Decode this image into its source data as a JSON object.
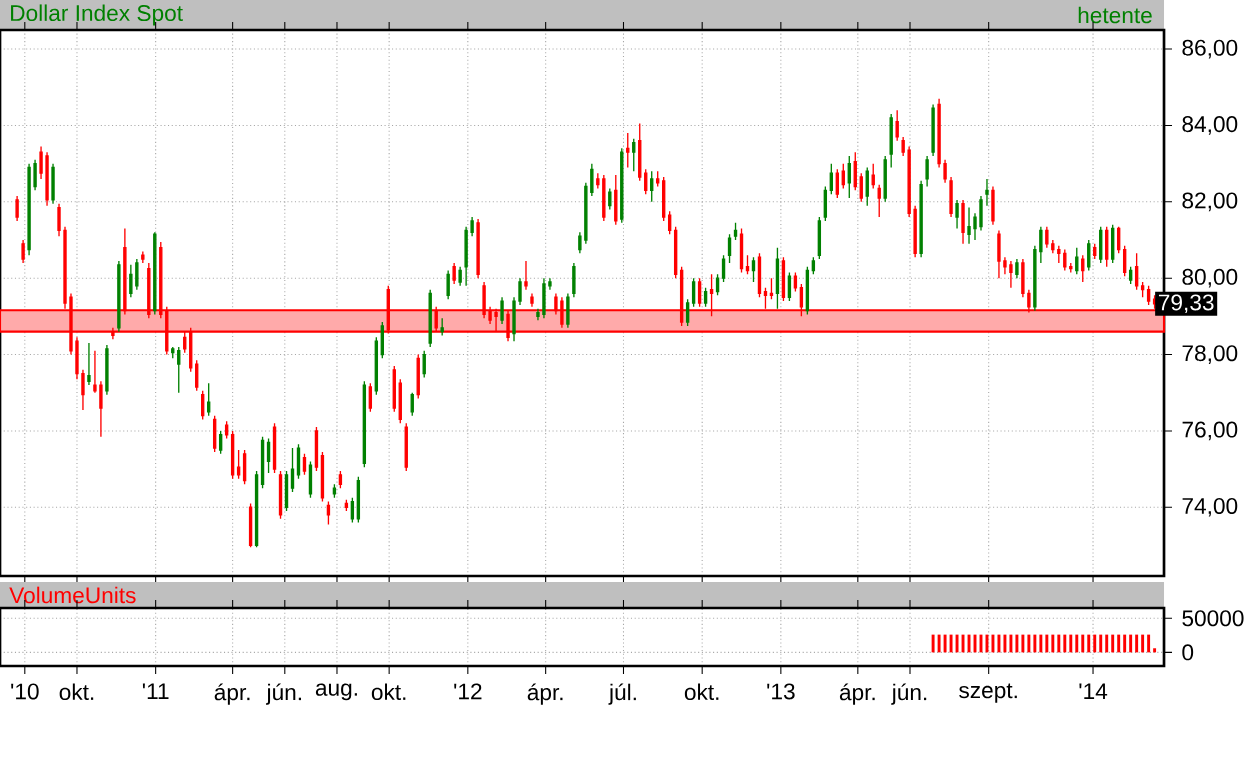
{
  "chart_data": [
    {
      "type": "candlestick",
      "title": "Dollar Index Spot",
      "subtitle": "hetente",
      "x": [
        "2010-07-23",
        "2010-07-30",
        "2010-08-06",
        "2010-08-13",
        "2010-08-20",
        "2010-08-27",
        "2010-09-03",
        "2010-09-10",
        "2010-09-17",
        "2010-09-24",
        "2010-10-01",
        "2010-10-08",
        "2010-10-15",
        "2010-10-22",
        "2010-10-29",
        "2010-11-05",
        "2010-11-12",
        "2010-11-19",
        "2010-11-26",
        "2010-12-03",
        "2010-12-10",
        "2010-12-17",
        "2010-12-24",
        "2010-12-31",
        "2011-01-07",
        "2011-01-14",
        "2011-01-21",
        "2011-01-28",
        "2011-02-04",
        "2011-02-11",
        "2011-02-18",
        "2011-02-25",
        "2011-03-04",
        "2011-03-11",
        "2011-03-18",
        "2011-03-25",
        "2011-04-01",
        "2011-04-08",
        "2011-04-15",
        "2011-04-22",
        "2011-04-29",
        "2011-05-06",
        "2011-05-13",
        "2011-05-20",
        "2011-05-27",
        "2011-06-03",
        "2011-06-10",
        "2011-06-17",
        "2011-06-24",
        "2011-07-01",
        "2011-07-08",
        "2011-07-15",
        "2011-07-22",
        "2011-07-29",
        "2011-08-05",
        "2011-08-12",
        "2011-08-19",
        "2011-08-26",
        "2011-09-02",
        "2011-09-09",
        "2011-09-16",
        "2011-09-23",
        "2011-09-30",
        "2011-10-07",
        "2011-10-14",
        "2011-10-21",
        "2011-10-28",
        "2011-11-04",
        "2011-11-11",
        "2011-11-18",
        "2011-11-25",
        "2011-12-02",
        "2011-12-09",
        "2011-12-16",
        "2011-12-23",
        "2011-12-30",
        "2012-01-06",
        "2012-01-13",
        "2012-01-20",
        "2012-01-27",
        "2012-02-03",
        "2012-02-10",
        "2012-02-17",
        "2012-02-24",
        "2012-03-02",
        "2012-03-09",
        "2012-03-16",
        "2012-03-23",
        "2012-03-30",
        "2012-04-06",
        "2012-04-13",
        "2012-04-20",
        "2012-04-27",
        "2012-05-04",
        "2012-05-11",
        "2012-05-18",
        "2012-05-25",
        "2012-06-01",
        "2012-06-08",
        "2012-06-15",
        "2012-06-22",
        "2012-06-29",
        "2012-07-06",
        "2012-07-13",
        "2012-07-20",
        "2012-07-27",
        "2012-08-03",
        "2012-08-10",
        "2012-08-17",
        "2012-08-24",
        "2012-08-31",
        "2012-09-07",
        "2012-09-14",
        "2012-09-21",
        "2012-09-28",
        "2012-10-05",
        "2012-10-12",
        "2012-10-19",
        "2012-10-26",
        "2012-11-02",
        "2012-11-09",
        "2012-11-16",
        "2012-11-23",
        "2012-11-30",
        "2012-12-07",
        "2012-12-14",
        "2012-12-21",
        "2012-12-28",
        "2013-01-04",
        "2013-01-11",
        "2013-01-18",
        "2013-01-25",
        "2013-02-01",
        "2013-02-08",
        "2013-02-15",
        "2013-02-22",
        "2013-03-01",
        "2013-03-08",
        "2013-03-15",
        "2013-03-22",
        "2013-03-29",
        "2013-04-05",
        "2013-04-12",
        "2013-04-19",
        "2013-04-26",
        "2013-05-03",
        "2013-05-10",
        "2013-05-17",
        "2013-05-24",
        "2013-05-31",
        "2013-06-07",
        "2013-06-14",
        "2013-06-21",
        "2013-06-28",
        "2013-07-05",
        "2013-07-12",
        "2013-07-19",
        "2013-07-26",
        "2013-08-02",
        "2013-08-09",
        "2013-08-16",
        "2013-08-23",
        "2013-08-30",
        "2013-09-06",
        "2013-09-13",
        "2013-09-20",
        "2013-09-27",
        "2013-10-04",
        "2013-10-11",
        "2013-10-18",
        "2013-10-25",
        "2013-11-01",
        "2013-11-08",
        "2013-11-15",
        "2013-11-22",
        "2013-11-29",
        "2013-12-06",
        "2013-12-13",
        "2013-12-20",
        "2013-12-27",
        "2014-01-03",
        "2014-01-10",
        "2014-01-17",
        "2014-01-24",
        "2014-01-31",
        "2014-02-07",
        "2014-02-14",
        "2014-02-21",
        "2014-02-28",
        "2014-03-07",
        "2014-03-14"
      ],
      "ohlc": [
        [
          82.05,
          82.15,
          81.5,
          81.6
        ],
        [
          80.9,
          81.0,
          80.4,
          80.5
        ],
        [
          80.75,
          83.0,
          80.6,
          82.9
        ],
        [
          82.4,
          83.1,
          82.3,
          83.0
        ],
        [
          83.3,
          83.45,
          82.6,
          82.75
        ],
        [
          83.2,
          83.3,
          81.9,
          82.05
        ],
        [
          82.05,
          83.0,
          81.95,
          82.9
        ],
        [
          81.85,
          81.95,
          81.1,
          81.25
        ],
        [
          81.25,
          81.35,
          79.2,
          79.35
        ],
        [
          79.5,
          79.6,
          78.0,
          78.1
        ],
        [
          78.35,
          78.45,
          77.35,
          77.5
        ],
        [
          77.5,
          77.6,
          76.55,
          76.95
        ],
        [
          77.3,
          78.3,
          77.2,
          77.45
        ],
        [
          77.2,
          78.1,
          77.0,
          77.05
        ],
        [
          77.2,
          77.3,
          75.85,
          76.6
        ],
        [
          77.05,
          78.25,
          76.95,
          78.15
        ],
        [
          78.6,
          78.7,
          78.4,
          78.5
        ],
        [
          78.7,
          80.45,
          78.6,
          80.35
        ],
        [
          80.8,
          81.3,
          79.05,
          79.15
        ],
        [
          79.6,
          80.35,
          79.5,
          80.1
        ],
        [
          79.8,
          80.5,
          79.7,
          80.4
        ],
        [
          80.6,
          80.7,
          80.4,
          80.5
        ],
        [
          80.25,
          80.4,
          78.95,
          79.05
        ],
        [
          79.15,
          81.2,
          79.05,
          81.15
        ],
        [
          80.8,
          80.95,
          78.95,
          79.05
        ],
        [
          79.15,
          79.25,
          78.0,
          78.1
        ],
        [
          78.05,
          78.2,
          77.9,
          78.15
        ],
        [
          77.75,
          78.2,
          77.0,
          78.1
        ],
        [
          78.45,
          78.6,
          78.05,
          78.15
        ],
        [
          78.6,
          78.7,
          77.55,
          77.65
        ],
        [
          77.75,
          77.85,
          77.05,
          77.15
        ],
        [
          76.95,
          77.05,
          76.3,
          76.4
        ],
        [
          76.5,
          77.25,
          76.4,
          76.75
        ],
        [
          76.3,
          76.4,
          75.45,
          75.55
        ],
        [
          75.5,
          76.0,
          75.4,
          75.9
        ],
        [
          76.15,
          76.25,
          75.8,
          75.9
        ],
        [
          75.9,
          76.0,
          74.75,
          74.85
        ],
        [
          75.05,
          75.5,
          74.75,
          74.85
        ],
        [
          75.4,
          75.5,
          74.6,
          74.7
        ],
        [
          74.0,
          74.1,
          72.95,
          73.0
        ],
        [
          73.0,
          74.95,
          72.95,
          74.85
        ],
        [
          74.6,
          75.85,
          74.5,
          75.75
        ],
        [
          75.2,
          75.8,
          74.9,
          75.7
        ],
        [
          76.1,
          76.2,
          74.9,
          75.0
        ],
        [
          74.85,
          74.95,
          73.7,
          73.8
        ],
        [
          74.0,
          74.95,
          73.9,
          74.85
        ],
        [
          74.5,
          75.55,
          74.4,
          75.0
        ],
        [
          74.85,
          75.65,
          74.75,
          75.55
        ],
        [
          75.3,
          75.4,
          74.85,
          74.95
        ],
        [
          74.35,
          75.2,
          74.25,
          75.1
        ],
        [
          76.0,
          76.1,
          74.95,
          75.05
        ],
        [
          75.35,
          75.45,
          74.15,
          74.25
        ],
        [
          74.05,
          74.15,
          73.55,
          73.8
        ],
        [
          74.35,
          74.6,
          74.25,
          74.5
        ],
        [
          74.85,
          74.95,
          74.5,
          74.6
        ],
        [
          74.1,
          74.2,
          73.9,
          74.0
        ],
        [
          73.7,
          74.25,
          73.6,
          74.15
        ],
        [
          73.7,
          74.8,
          73.6,
          74.7
        ],
        [
          75.15,
          77.3,
          75.05,
          77.2
        ],
        [
          77.15,
          77.25,
          76.5,
          76.6
        ],
        [
          77.05,
          78.45,
          76.95,
          78.35
        ],
        [
          78.0,
          78.85,
          77.9,
          78.75
        ],
        [
          79.7,
          79.8,
          78.55,
          78.65
        ],
        [
          77.6,
          77.7,
          76.5,
          76.6
        ],
        [
          77.25,
          77.35,
          76.2,
          76.3
        ],
        [
          76.1,
          76.2,
          74.95,
          75.05
        ],
        [
          76.5,
          77.0,
          76.4,
          76.95
        ],
        [
          77.9,
          78.0,
          76.85,
          76.95
        ],
        [
          77.5,
          78.1,
          77.4,
          78.0
        ],
        [
          78.3,
          79.7,
          78.2,
          79.6
        ],
        [
          79.15,
          79.25,
          78.6,
          78.7
        ],
        [
          78.6,
          78.95,
          78.5,
          78.7
        ],
        [
          79.55,
          80.2,
          79.45,
          80.1
        ],
        [
          80.3,
          80.4,
          79.85,
          79.95
        ],
        [
          79.9,
          80.3,
          79.8,
          80.2
        ],
        [
          80.3,
          81.35,
          79.8,
          81.25
        ],
        [
          81.2,
          81.6,
          81.1,
          81.5
        ],
        [
          81.45,
          81.55,
          80.0,
          80.1
        ],
        [
          79.8,
          79.9,
          78.95,
          79.05
        ],
        [
          79.15,
          79.25,
          78.8,
          78.9
        ],
        [
          79.1,
          79.2,
          78.6,
          79.0
        ],
        [
          78.9,
          79.5,
          78.8,
          79.4
        ],
        [
          79.05,
          79.15,
          78.35,
          78.45
        ],
        [
          78.55,
          79.5,
          78.35,
          79.4
        ],
        [
          79.4,
          80.0,
          79.3,
          79.9
        ],
        [
          79.9,
          80.45,
          79.7,
          79.8
        ],
        [
          79.5,
          79.6,
          79.25,
          79.35
        ],
        [
          79.0,
          79.2,
          78.9,
          79.1
        ],
        [
          79.05,
          80.0,
          78.95,
          79.85
        ],
        [
          79.8,
          80.0,
          79.7,
          79.9
        ],
        [
          79.5,
          79.6,
          79.05,
          79.15
        ],
        [
          79.4,
          79.5,
          78.7,
          78.8
        ],
        [
          78.8,
          79.6,
          78.7,
          79.5
        ],
        [
          79.6,
          80.4,
          79.5,
          80.3
        ],
        [
          80.75,
          81.2,
          80.65,
          81.1
        ],
        [
          81.0,
          82.5,
          80.9,
          82.4
        ],
        [
          82.25,
          83.0,
          82.15,
          82.85
        ],
        [
          82.6,
          82.75,
          82.35,
          82.45
        ],
        [
          82.6,
          82.7,
          81.5,
          81.6
        ],
        [
          81.9,
          82.35,
          81.8,
          82.25
        ],
        [
          82.3,
          82.7,
          81.4,
          81.5
        ],
        [
          81.55,
          83.4,
          81.45,
          83.3
        ],
        [
          83.4,
          83.8,
          82.9,
          83.3
        ],
        [
          83.3,
          83.65,
          82.8,
          83.55
        ],
        [
          83.6,
          84.05,
          82.55,
          82.65
        ],
        [
          82.75,
          82.85,
          82.2,
          82.3
        ],
        [
          82.3,
          82.8,
          82.0,
          82.6
        ],
        [
          82.6,
          82.8,
          82.4,
          82.5
        ],
        [
          82.55,
          82.65,
          81.5,
          81.6
        ],
        [
          81.65,
          81.75,
          81.15,
          81.25
        ],
        [
          81.25,
          81.35,
          80.0,
          80.1
        ],
        [
          80.2,
          80.3,
          78.75,
          78.85
        ],
        [
          78.85,
          79.45,
          78.75,
          79.35
        ],
        [
          79.35,
          80.0,
          79.25,
          79.9
        ],
        [
          79.9,
          80.0,
          79.25,
          79.35
        ],
        [
          79.35,
          79.75,
          79.25,
          79.65
        ],
        [
          79.7,
          80.1,
          79.0,
          79.6
        ],
        [
          79.65,
          80.1,
          79.55,
          80.0
        ],
        [
          80.0,
          80.6,
          79.9,
          80.5
        ],
        [
          80.6,
          81.15,
          80.4,
          81.05
        ],
        [
          81.1,
          81.45,
          81.0,
          81.25
        ],
        [
          81.15,
          81.3,
          80.15,
          80.25
        ],
        [
          80.3,
          80.6,
          80.1,
          80.2
        ],
        [
          80.2,
          80.55,
          79.9,
          80.45
        ],
        [
          80.55,
          80.65,
          79.5,
          79.6
        ],
        [
          79.65,
          79.75,
          79.2,
          79.55
        ],
        [
          79.6,
          80.0,
          79.45,
          79.55
        ],
        [
          79.6,
          80.8,
          79.2,
          80.5
        ],
        [
          80.45,
          80.55,
          79.4,
          79.5
        ],
        [
          79.5,
          80.15,
          79.4,
          80.05
        ],
        [
          80.05,
          80.15,
          79.65,
          79.75
        ],
        [
          79.75,
          79.85,
          79.0,
          79.25
        ],
        [
          79.15,
          80.3,
          79.05,
          80.2
        ],
        [
          80.2,
          80.55,
          80.1,
          80.45
        ],
        [
          80.6,
          81.6,
          80.5,
          81.5
        ],
        [
          81.6,
          82.4,
          81.5,
          82.3
        ],
        [
          82.3,
          83.0,
          82.2,
          82.75
        ],
        [
          82.75,
          82.85,
          82.1,
          82.2
        ],
        [
          82.8,
          83.0,
          82.35,
          82.45
        ],
        [
          82.5,
          83.2,
          82.1,
          83.0
        ],
        [
          83.05,
          83.3,
          82.3,
          82.4
        ],
        [
          82.65,
          82.75,
          82.0,
          82.1
        ],
        [
          82.15,
          82.9,
          81.9,
          82.8
        ],
        [
          82.7,
          83.0,
          82.35,
          82.45
        ],
        [
          82.35,
          82.45,
          81.6,
          82.1
        ],
        [
          82.1,
          83.2,
          82.0,
          83.1
        ],
        [
          83.25,
          84.3,
          82.9,
          84.2
        ],
        [
          84.1,
          84.4,
          83.6,
          83.7
        ],
        [
          83.6,
          83.7,
          83.2,
          83.3
        ],
        [
          83.35,
          83.45,
          81.6,
          81.7
        ],
        [
          81.8,
          81.9,
          80.55,
          80.65
        ],
        [
          80.65,
          82.55,
          80.55,
          82.45
        ],
        [
          82.6,
          83.2,
          82.4,
          83.1
        ],
        [
          83.3,
          84.55,
          83.2,
          84.45
        ],
        [
          84.55,
          84.7,
          82.9,
          83.0
        ],
        [
          83.0,
          83.1,
          82.5,
          82.6
        ],
        [
          82.55,
          82.65,
          81.6,
          81.7
        ],
        [
          81.6,
          82.05,
          81.3,
          81.95
        ],
        [
          81.95,
          82.05,
          80.9,
          81.2
        ],
        [
          81.15,
          81.85,
          80.9,
          81.35
        ],
        [
          81.3,
          81.7,
          81.0,
          81.6
        ],
        [
          81.35,
          82.15,
          81.25,
          82.05
        ],
        [
          82.2,
          82.6,
          81.9,
          82.3
        ],
        [
          82.3,
          82.4,
          81.4,
          81.5
        ],
        [
          81.15,
          81.25,
          80.0,
          80.45
        ],
        [
          80.45,
          80.55,
          80.1,
          80.3
        ],
        [
          80.35,
          80.45,
          79.75,
          80.15
        ],
        [
          80.1,
          80.5,
          80.0,
          80.4
        ],
        [
          80.4,
          80.5,
          79.5,
          79.6
        ],
        [
          79.6,
          79.7,
          79.1,
          79.25
        ],
        [
          79.25,
          80.85,
          79.15,
          80.75
        ],
        [
          80.7,
          81.35,
          80.4,
          81.25
        ],
        [
          81.25,
          81.35,
          80.8,
          80.9
        ],
        [
          80.9,
          81.0,
          80.65,
          80.75
        ],
        [
          80.75,
          80.85,
          80.4,
          80.65
        ],
        [
          80.65,
          80.75,
          80.2,
          80.3
        ],
        [
          80.3,
          80.4,
          80.15,
          80.25
        ],
        [
          80.2,
          80.8,
          80.1,
          80.55
        ],
        [
          80.5,
          80.6,
          79.9,
          80.2
        ],
        [
          80.3,
          81.0,
          80.2,
          80.9
        ],
        [
          80.8,
          80.9,
          80.5,
          80.6
        ],
        [
          80.5,
          81.35,
          80.4,
          81.25
        ],
        [
          81.25,
          81.35,
          80.3,
          80.5
        ],
        [
          80.5,
          81.4,
          80.4,
          81.3
        ],
        [
          81.3,
          81.35,
          80.65,
          80.75
        ],
        [
          80.75,
          80.85,
          80.05,
          80.15
        ],
        [
          79.95,
          80.3,
          79.85,
          80.2
        ],
        [
          80.3,
          80.65,
          79.7,
          79.8
        ],
        [
          79.8,
          79.9,
          79.5,
          79.7
        ],
        [
          79.7,
          79.8,
          79.3,
          79.4
        ],
        [
          79.45,
          79.55,
          79.2,
          79.33
        ]
      ],
      "xlim": [
        "2010-07-03",
        "2014-03-25"
      ],
      "xticks": [
        {
          "value": "2010-08-01",
          "label": null
        },
        {
          "value": "2010-10-01",
          "label": null
        },
        {
          "value": "2011-01-01",
          "label": null
        },
        {
          "value": "2011-04-01",
          "label": null
        },
        {
          "value": "2011-06-01",
          "label": null
        },
        {
          "value": "2011-08-01",
          "label": null
        },
        {
          "value": "2011-10-01",
          "label": null
        },
        {
          "value": "2012-01-01",
          "label": null
        },
        {
          "value": "2012-04-01",
          "label": null
        },
        {
          "value": "2012-07-01",
          "label": null
        },
        {
          "value": "2012-10-01",
          "label": null
        },
        {
          "value": "2013-01-01",
          "label": null
        },
        {
          "value": "2013-04-01",
          "label": null
        },
        {
          "value": "2013-06-01",
          "label": null
        },
        {
          "value": "2013-09-01",
          "label": null
        },
        {
          "value": "2014-01-01",
          "label": null
        }
      ],
      "ylim": [
        72.2,
        86.5
      ],
      "yticks": [
        {
          "value": 74,
          "label": "74,00"
        },
        {
          "value": 76,
          "label": "76,00"
        },
        {
          "value": 78,
          "label": "78,00"
        },
        {
          "value": 80,
          "label": "80,00"
        },
        {
          "value": 82,
          "label": "82,00"
        },
        {
          "value": 84,
          "label": "84,00"
        },
        {
          "value": 86,
          "label": "86,00"
        }
      ],
      "tick_labels": "y",
      "grid": true,
      "bands": [
        {
          "axis": "y",
          "from": 78.6,
          "to": 79.16,
          "color": "#ffaaaa"
        }
      ],
      "annotations": [
        {
          "text": "79,33",
          "x": "2014-03-14",
          "y": 79.33
        }
      ]
    },
    {
      "type": "bar",
      "title": "VolumeUnits",
      "color": "#ff0000",
      "x": [
        "2013-06-28",
        "2013-07-05",
        "2013-07-12",
        "2013-07-19",
        "2013-07-26",
        "2013-08-02",
        "2013-08-09",
        "2013-08-16",
        "2013-08-23",
        "2013-08-30",
        "2013-09-06",
        "2013-09-13",
        "2013-09-20",
        "2013-09-27",
        "2013-10-04",
        "2013-10-11",
        "2013-10-18",
        "2013-10-25",
        "2013-11-01",
        "2013-11-08",
        "2013-11-15",
        "2013-11-22",
        "2013-11-29",
        "2013-12-06",
        "2013-12-13",
        "2013-12-20",
        "2013-12-27",
        "2014-01-03",
        "2014-01-10",
        "2014-01-17",
        "2014-01-24",
        "2014-01-31",
        "2014-02-07",
        "2014-02-14",
        "2014-02-21",
        "2014-02-28",
        "2014-03-07",
        "2014-03-14"
      ],
      "values": [
        26000,
        26000,
        26000,
        26000,
        26000,
        26000,
        26000,
        26000,
        26000,
        26000,
        26000,
        26000,
        26000,
        26000,
        26000,
        26000,
        26000,
        26000,
        26000,
        26000,
        26000,
        26000,
        26000,
        26000,
        26000,
        26000,
        26000,
        26000,
        26000,
        26000,
        26000,
        26000,
        26000,
        26000,
        26000,
        26000,
        26000,
        6000
      ],
      "xlim": [
        "2010-07-03",
        "2014-03-25"
      ],
      "xticks": [
        {
          "value": "2010-08-01",
          "label": "'10"
        },
        {
          "value": "2010-10-01",
          "label": "okt."
        },
        {
          "value": "2011-01-01",
          "label": "'11"
        },
        {
          "value": "2011-04-01",
          "label": "ápr."
        },
        {
          "value": "2011-06-01",
          "label": "jún."
        },
        {
          "value": "2011-08-01",
          "label": "aug."
        },
        {
          "value": "2011-10-01",
          "label": "okt."
        },
        {
          "value": "2012-01-01",
          "label": "'12"
        },
        {
          "value": "2012-04-01",
          "label": "ápr."
        },
        {
          "value": "2012-07-01",
          "label": "júl."
        },
        {
          "value": "2012-10-01",
          "label": "okt."
        },
        {
          "value": "2013-01-01",
          "label": "'13"
        },
        {
          "value": "2013-04-01",
          "label": "ápr."
        },
        {
          "value": "2013-06-01",
          "label": "jún."
        },
        {
          "value": "2013-09-01",
          "label": "szept."
        },
        {
          "value": "2014-01-01",
          "label": "'14"
        }
      ],
      "ylim": [
        -20000,
        65000
      ],
      "yticks": [
        0,
        50000
      ],
      "grid": true
    }
  ]
}
